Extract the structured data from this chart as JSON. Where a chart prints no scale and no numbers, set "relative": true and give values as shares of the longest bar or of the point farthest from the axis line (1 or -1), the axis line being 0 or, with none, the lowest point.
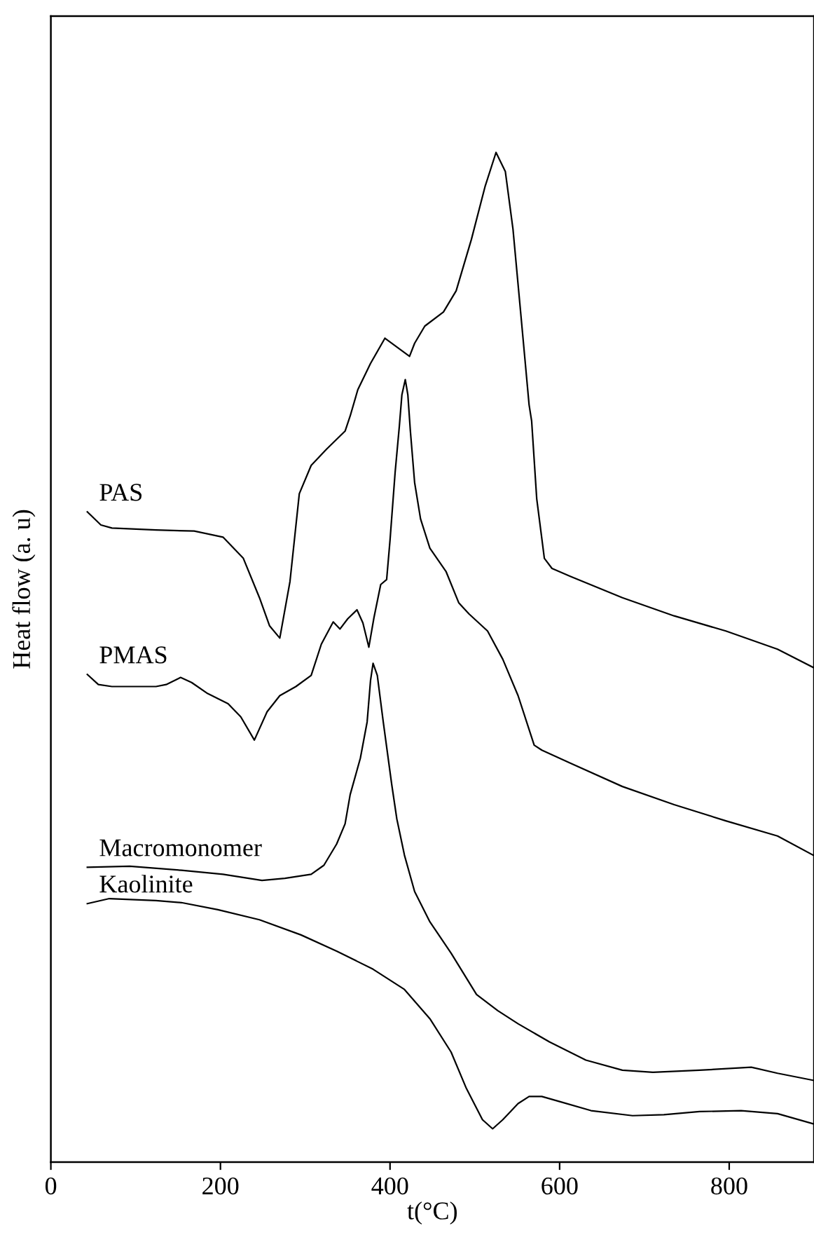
{
  "chart_data": {
    "type": "line",
    "relative": true,
    "xlabel": "t(°C)",
    "ylabel": "Heat flow (a. u)",
    "xlim": [
      0,
      900
    ],
    "xticks": [
      0,
      200,
      400,
      600,
      800
    ],
    "grid": false,
    "legend": false,
    "marker": "none",
    "line_style": "solid",
    "series": [
      {
        "name": "PAS",
        "color": "#000000",
        "x": [
          43,
          59,
          72,
          124,
          169,
          203,
          227,
          246,
          258,
          270,
          282,
          293,
          307,
          325,
          347,
          353,
          362,
          377,
          394,
          423,
          429,
          441,
          463,
          478,
          496,
          512,
          525,
          536,
          545,
          554,
          564,
          567,
          573,
          582,
          591,
          613,
          674,
          735,
          796,
          857,
          899
        ],
        "values": [
          0.644,
          0.631,
          0.628,
          0.626,
          0.625,
          0.619,
          0.598,
          0.559,
          0.531,
          0.519,
          0.575,
          0.662,
          0.69,
          0.706,
          0.724,
          0.739,
          0.765,
          0.791,
          0.816,
          0.798,
          0.811,
          0.828,
          0.842,
          0.863,
          0.914,
          0.966,
          1,
          0.981,
          0.924,
          0.842,
          0.75,
          0.734,
          0.657,
          0.598,
          0.588,
          0.58,
          0.559,
          0.541,
          0.526,
          0.508,
          0.49
        ]
      },
      {
        "name": "PMAS",
        "color": "#000000",
        "x": [
          43,
          56,
          72,
          124,
          136,
          153,
          166,
          185,
          209,
          224,
          240,
          255,
          270,
          289,
          307,
          319,
          333,
          341,
          350,
          361,
          368,
          375,
          381,
          389,
          396,
          400,
          406,
          411,
          414,
          418,
          421,
          424,
          429,
          436,
          447,
          466,
          481,
          493,
          515,
          533,
          551,
          570,
          579,
          613,
          674,
          735,
          796,
          857,
          899
        ],
        "values": [
          0.483,
          0.473,
          0.471,
          0.471,
          0.473,
          0.48,
          0.475,
          0.464,
          0.454,
          0.441,
          0.418,
          0.446,
          0.462,
          0.471,
          0.482,
          0.513,
          0.535,
          0.528,
          0.538,
          0.547,
          0.534,
          0.51,
          0.539,
          0.572,
          0.577,
          0.616,
          0.683,
          0.729,
          0.76,
          0.775,
          0.76,
          0.724,
          0.673,
          0.637,
          0.608,
          0.585,
          0.554,
          0.543,
          0.526,
          0.498,
          0.462,
          0.413,
          0.408,
          0.395,
          0.372,
          0.354,
          0.338,
          0.323,
          0.304
        ]
      },
      {
        "name": "Macromonomer",
        "color": "#000000",
        "x": [
          43,
          93,
          154,
          203,
          249,
          276,
          307,
          322,
          337,
          347,
          353,
          365,
          373,
          377,
          380,
          385,
          392,
          402,
          408,
          417,
          429,
          447,
          472,
          502,
          527,
          551,
          588,
          631,
          674,
          710,
          765,
          826,
          857,
          899
        ],
        "values": [
          0.292,
          0.293,
          0.289,
          0.285,
          0.279,
          0.281,
          0.285,
          0.294,
          0.315,
          0.335,
          0.364,
          0.4,
          0.436,
          0.477,
          0.494,
          0.482,
          0.436,
          0.374,
          0.34,
          0.304,
          0.268,
          0.238,
          0.207,
          0.166,
          0.15,
          0.137,
          0.119,
          0.101,
          0.091,
          0.089,
          0.091,
          0.094,
          0.088,
          0.081
        ]
      },
      {
        "name": "Kaolinite",
        "color": "#000000",
        "x": [
          43,
          69,
          124,
          154,
          197,
          246,
          295,
          337,
          380,
          417,
          447,
          472,
          490,
          509,
          521,
          533,
          551,
          564,
          579,
          600,
          637,
          686,
          723,
          765,
          814,
          857,
          899
        ],
        "values": [
          0.256,
          0.261,
          0.259,
          0.257,
          0.25,
          0.24,
          0.225,
          0.209,
          0.191,
          0.171,
          0.142,
          0.109,
          0.073,
          0.042,
          0.033,
          0.042,
          0.058,
          0.065,
          0.065,
          0.06,
          0.051,
          0.046,
          0.047,
          0.05,
          0.051,
          0.048,
          0.038
        ]
      }
    ]
  }
}
